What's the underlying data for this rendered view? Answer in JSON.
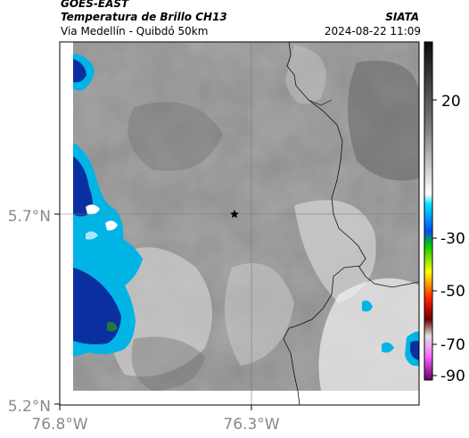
{
  "header": {
    "satellite": "GOES-EAST",
    "product": "Temperatura de Brillo CH13",
    "route": "Via Medellín - Quibdó 50km",
    "organization": "SIATA",
    "timestamp": "2024-08-22 11:09"
  },
  "axes": {
    "lat_ticks": [
      "5.7°N",
      "5.2°N"
    ],
    "lon_ticks": [
      "76.8°W",
      "76.3°W"
    ]
  },
  "colorbar": {
    "ticks": [
      "20",
      "-30",
      "-50",
      "-70",
      "-90"
    ],
    "colors": [
      "#1a1a1a",
      "#bfbfbf",
      "#00e5ff",
      "#0040ff",
      "#00ff00",
      "#ffff00",
      "#ff0000",
      "#8b0000",
      "#ff66ff",
      "#800080"
    ]
  },
  "map": {
    "center_marker": "star-icon",
    "cold_cloud_color": "#00b4e6",
    "deep_cloud_color": "#0a2fa0"
  }
}
